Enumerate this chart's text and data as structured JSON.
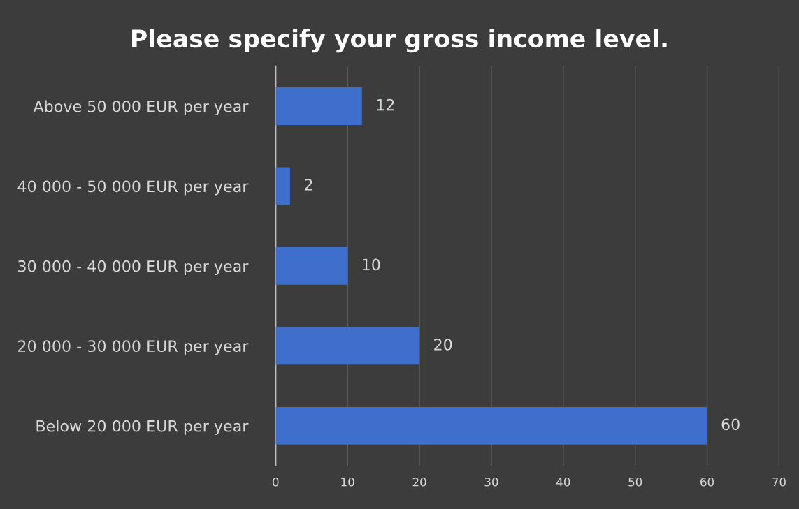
{
  "chart_data": {
    "type": "bar",
    "orientation": "horizontal",
    "title": "Please specify your gross income level.",
    "categories": [
      "Above 50 000 EUR per year",
      "40 000 - 50 000 EUR per year",
      "30 000 - 40 000 EUR per year",
      "20 000 - 30 000 EUR per year",
      "Below 20 000 EUR per year"
    ],
    "values": [
      12,
      2,
      10,
      20,
      60
    ],
    "color": "#3f6fcc",
    "xlim": [
      0,
      70
    ],
    "xticks": [
      0,
      10,
      20,
      30,
      40,
      50,
      60,
      70
    ],
    "grid": "x",
    "data_labels": true
  }
}
